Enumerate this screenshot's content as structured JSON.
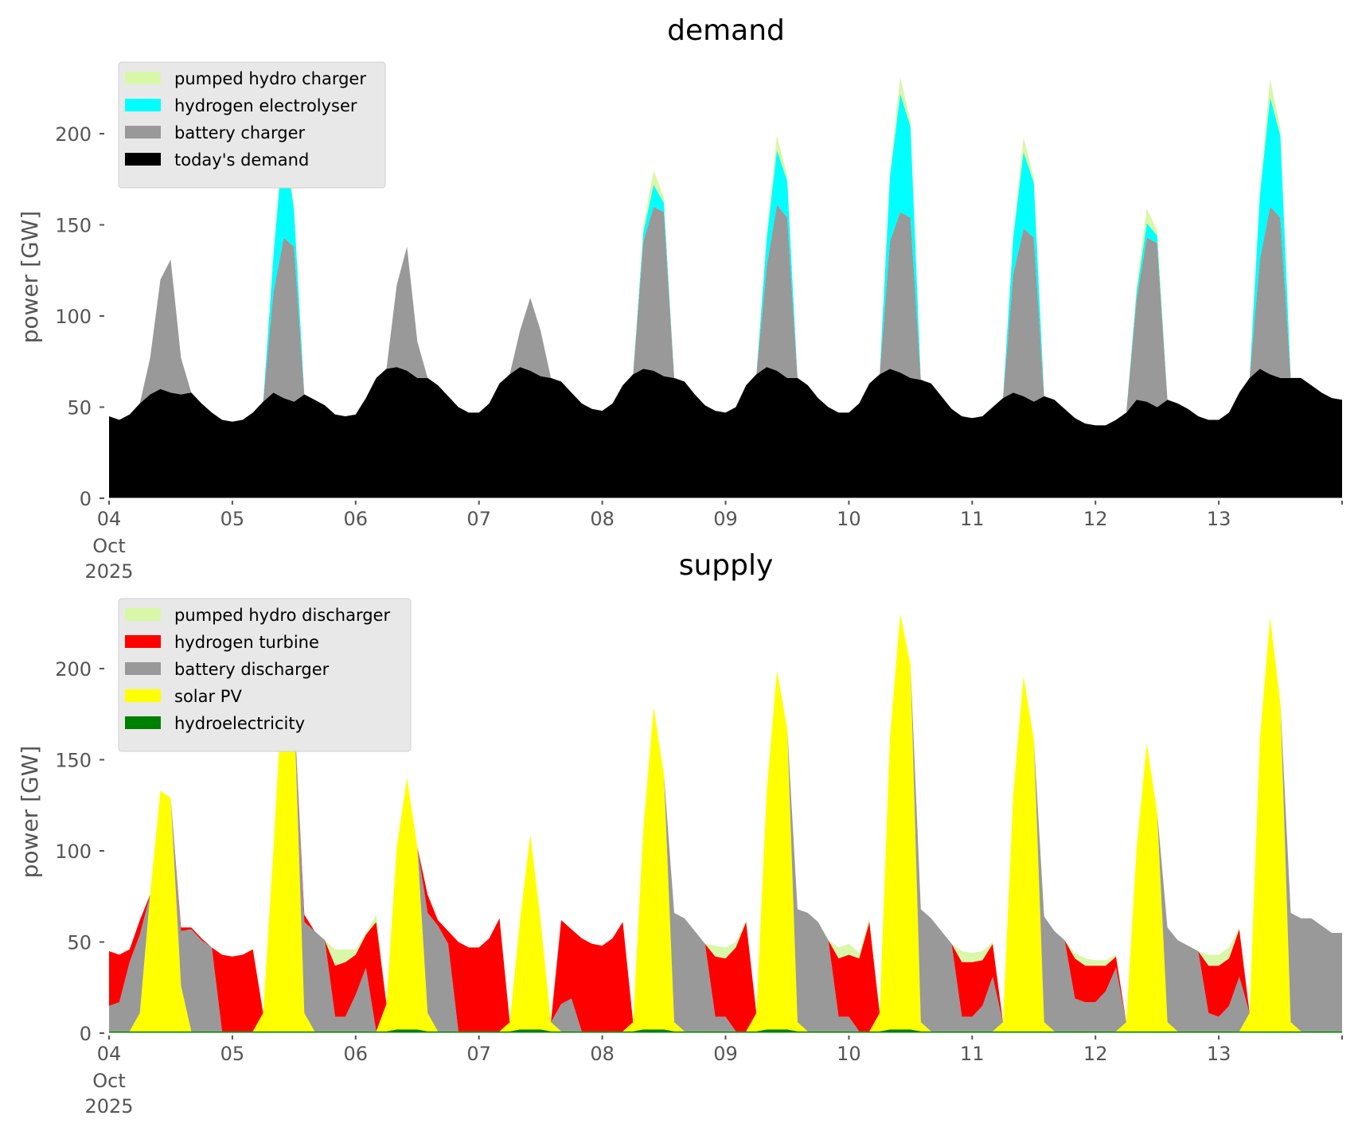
{
  "chart_data": [
    {
      "type": "area",
      "stacked": true,
      "title": "demand",
      "xlabel": "",
      "ylabel": "power [GW]",
      "ylim": [
        0,
        240
      ],
      "yticks": [
        "0",
        "50",
        "100",
        "150",
        "200"
      ],
      "ytick_values": [
        0,
        50,
        100,
        150,
        200
      ],
      "xticks": [
        "04",
        "05",
        "06",
        "07",
        "08",
        "09",
        "10",
        "11",
        "12",
        "13"
      ],
      "xtick_sublabels": [
        "Oct",
        "2025"
      ],
      "x_start": "2025-10-04 00:00",
      "x_step_hours": 2,
      "x_days": 10,
      "grid": false,
      "legend_position": "top-left",
      "series": [
        {
          "name": "today's demand",
          "color": "#000000",
          "values": [
            45,
            43,
            46,
            52,
            57,
            60,
            58,
            57,
            58,
            52,
            47,
            43,
            42,
            43,
            47,
            53,
            58,
            55,
            53,
            57,
            54,
            51,
            46,
            45,
            46,
            55,
            66,
            71,
            72,
            70,
            66,
            66,
            62,
            56,
            50,
            47,
            47,
            52,
            63,
            68,
            72,
            70,
            67,
            66,
            64,
            58,
            52,
            49,
            48,
            52,
            62,
            68,
            71,
            70,
            67,
            66,
            64,
            57,
            51,
            48,
            47,
            50,
            62,
            68,
            72,
            70,
            66,
            66,
            62,
            55,
            50,
            47,
            47,
            52,
            63,
            68,
            71,
            69,
            66,
            65,
            63,
            56,
            49,
            45,
            44,
            45,
            50,
            55,
            58,
            56,
            53,
            56,
            54,
            49,
            44,
            41,
            40,
            40,
            43,
            47,
            54,
            53,
            50,
            54,
            52,
            49,
            45,
            43,
            43,
            47,
            58,
            66,
            71,
            68,
            66,
            66,
            66,
            62,
            58,
            55,
            54
          ]
        },
        {
          "name": "battery charger",
          "color": "#999999",
          "values": [
            0,
            0,
            0,
            0,
            20,
            60,
            73,
            20,
            0,
            0,
            0,
            0,
            0,
            0,
            0,
            0,
            55,
            88,
            85,
            0,
            0,
            0,
            0,
            0,
            0,
            0,
            0,
            0,
            45,
            68,
            20,
            0,
            0,
            0,
            0,
            0,
            0,
            0,
            0,
            0,
            20,
            40,
            25,
            0,
            0,
            0,
            0,
            0,
            0,
            0,
            0,
            0,
            70,
            90,
            90,
            0,
            0,
            0,
            0,
            0,
            0,
            0,
            0,
            0,
            55,
            91,
            88,
            0,
            0,
            0,
            0,
            0,
            0,
            0,
            0,
            0,
            70,
            88,
            88,
            0,
            0,
            0,
            0,
            0,
            0,
            0,
            0,
            0,
            65,
            92,
            90,
            0,
            0,
            0,
            0,
            0,
            0,
            0,
            0,
            0,
            55,
            90,
            90,
            0,
            0,
            0,
            0,
            0,
            0,
            0,
            0,
            0,
            60,
            92,
            88,
            0,
            0,
            0,
            0,
            0,
            0
          ]
        },
        {
          "name": "hydrogen electrolyser",
          "color": "#00ffff",
          "values": [
            0,
            0,
            0,
            0,
            0,
            0,
            0,
            0,
            0,
            0,
            0,
            0,
            0,
            0,
            0,
            0,
            20,
            55,
            20,
            0,
            0,
            0,
            0,
            0,
            0,
            0,
            0,
            0,
            0,
            0,
            0,
            0,
            0,
            0,
            0,
            0,
            0,
            0,
            0,
            0,
            0,
            0,
            0,
            0,
            0,
            0,
            0,
            0,
            0,
            0,
            0,
            0,
            5,
            12,
            5,
            0,
            0,
            0,
            0,
            0,
            0,
            0,
            0,
            0,
            15,
            30,
            20,
            0,
            0,
            0,
            0,
            0,
            0,
            0,
            0,
            0,
            35,
            65,
            50,
            0,
            0,
            0,
            0,
            0,
            0,
            0,
            0,
            0,
            20,
            42,
            30,
            0,
            0,
            0,
            0,
            0,
            0,
            0,
            0,
            0,
            4,
            8,
            4,
            0,
            0,
            0,
            0,
            0,
            0,
            0,
            0,
            0,
            35,
            60,
            45,
            0,
            0,
            0,
            0,
            0,
            0
          ]
        },
        {
          "name": "pumped hydro charger",
          "color": "#d9f7a8",
          "values": [
            0,
            0,
            0,
            0,
            0,
            0,
            0,
            0,
            0,
            0,
            0,
            0,
            0,
            0,
            0,
            0,
            2,
            5,
            2,
            0,
            0,
            0,
            0,
            0,
            0,
            0,
            0,
            0,
            0,
            0,
            0,
            0,
            0,
            0,
            0,
            0,
            0,
            0,
            0,
            0,
            0,
            0,
            0,
            0,
            0,
            0,
            0,
            0,
            0,
            0,
            0,
            0,
            3,
            8,
            3,
            0,
            0,
            0,
            0,
            0,
            0,
            0,
            0,
            0,
            3,
            8,
            3,
            0,
            0,
            0,
            0,
            0,
            0,
            0,
            0,
            0,
            3,
            9,
            3,
            0,
            0,
            0,
            0,
            0,
            0,
            0,
            0,
            0,
            3,
            8,
            3,
            0,
            0,
            0,
            0,
            0,
            0,
            0,
            0,
            0,
            3,
            8,
            3,
            0,
            0,
            0,
            0,
            0,
            0,
            0,
            0,
            0,
            3,
            10,
            4,
            0,
            0,
            0,
            0,
            0,
            0
          ]
        }
      ]
    },
    {
      "type": "area",
      "stacked": true,
      "title": "supply",
      "xlabel": "",
      "ylabel": "power [GW]",
      "ylim": [
        0,
        240
      ],
      "yticks": [
        "0",
        "50",
        "100",
        "150",
        "200"
      ],
      "ytick_values": [
        0,
        50,
        100,
        150,
        200
      ],
      "xticks": [
        "04",
        "05",
        "06",
        "07",
        "08",
        "09",
        "10",
        "11",
        "12",
        "13"
      ],
      "xtick_sublabels": [
        "Oct",
        "2025"
      ],
      "x_start": "2025-10-04 00:00",
      "x_step_hours": 2,
      "x_days": 10,
      "grid": false,
      "legend_position": "top-left",
      "series": [
        {
          "name": "hydroelectricity",
          "color": "#008000",
          "values": [
            1,
            1,
            1,
            1,
            1,
            1,
            1,
            1,
            1,
            1,
            1,
            1,
            1,
            1,
            1,
            1,
            1,
            1,
            1,
            1,
            1,
            1,
            1,
            1,
            1,
            1,
            1,
            1,
            2,
            2,
            2,
            1,
            1,
            1,
            1,
            1,
            1,
            1,
            1,
            1,
            2,
            2,
            2,
            1,
            1,
            1,
            1,
            1,
            1,
            1,
            1,
            1,
            2,
            2,
            2,
            1,
            1,
            1,
            1,
            1,
            1,
            1,
            1,
            1,
            2,
            2,
            2,
            1,
            1,
            1,
            1,
            1,
            1,
            1,
            1,
            1,
            2,
            2,
            2,
            1,
            1,
            1,
            1,
            1,
            1,
            1,
            1,
            1,
            1,
            1,
            1,
            1,
            1,
            1,
            1,
            1,
            1,
            1,
            1,
            1,
            1,
            1,
            1,
            1,
            1,
            1,
            1,
            1,
            1,
            1,
            1,
            1,
            1,
            1,
            1,
            1,
            1,
            1,
            1,
            1,
            1
          ]
        },
        {
          "name": "solar PV",
          "color": "#ffff00",
          "values": [
            0,
            0,
            0,
            10,
            75,
            132,
            128,
            25,
            0,
            0,
            0,
            0,
            0,
            0,
            0,
            10,
            100,
            200,
            178,
            10,
            0,
            0,
            0,
            0,
            0,
            0,
            0,
            15,
            100,
            138,
            100,
            10,
            0,
            0,
            0,
            0,
            0,
            0,
            0,
            5,
            60,
            107,
            60,
            5,
            0,
            0,
            0,
            0,
            0,
            0,
            0,
            5,
            110,
            177,
            140,
            5,
            0,
            0,
            0,
            0,
            0,
            0,
            0,
            10,
            130,
            197,
            165,
            5,
            0,
            0,
            0,
            0,
            0,
            0,
            0,
            10,
            160,
            228,
            200,
            5,
            0,
            0,
            0,
            0,
            0,
            0,
            0,
            5,
            130,
            195,
            160,
            5,
            0,
            0,
            0,
            0,
            0,
            0,
            0,
            5,
            100,
            158,
            120,
            5,
            0,
            0,
            0,
            0,
            0,
            0,
            0,
            10,
            160,
            227,
            180,
            5,
            0,
            0,
            0,
            0,
            0
          ]
        },
        {
          "name": "battery discharger",
          "color": "#999999",
          "values": [
            14,
            16,
            38,
            43,
            0,
            0,
            0,
            30,
            56,
            50,
            46,
            0,
            0,
            0,
            0,
            0,
            0,
            0,
            0,
            50,
            55,
            50,
            8,
            8,
            20,
            35,
            0,
            0,
            0,
            0,
            0,
            55,
            58,
            48,
            0,
            0,
            0,
            0,
            0,
            0,
            0,
            0,
            0,
            0,
            15,
            18,
            0,
            0,
            0,
            0,
            0,
            0,
            0,
            0,
            0,
            60,
            62,
            55,
            48,
            8,
            8,
            0,
            0,
            0,
            0,
            0,
            0,
            62,
            65,
            60,
            50,
            8,
            8,
            0,
            0,
            0,
            0,
            0,
            0,
            62,
            62,
            55,
            48,
            8,
            8,
            14,
            30,
            0,
            0,
            0,
            0,
            58,
            55,
            50,
            18,
            16,
            16,
            22,
            35,
            0,
            0,
            0,
            0,
            52,
            50,
            47,
            44,
            10,
            8,
            14,
            30,
            0,
            0,
            0,
            0,
            60,
            62,
            62,
            58,
            54,
            54
          ]
        },
        {
          "name": "hydrogen turbine",
          "color": "#ff0000",
          "values": [
            30,
            26,
            7,
            8,
            0,
            0,
            0,
            2,
            1,
            1,
            0,
            42,
            41,
            42,
            45,
            0,
            0,
            0,
            0,
            4,
            0,
            0,
            28,
            30,
            22,
            18,
            60,
            0,
            0,
            0,
            0,
            10,
            3,
            7,
            49,
            46,
            46,
            51,
            62,
            0,
            0,
            0,
            0,
            0,
            46,
            38,
            51,
            48,
            47,
            51,
            60,
            0,
            0,
            0,
            0,
            0,
            0,
            0,
            0,
            33,
            32,
            46,
            60,
            0,
            0,
            0,
            0,
            0,
            0,
            0,
            0,
            32,
            34,
            40,
            60,
            0,
            0,
            0,
            0,
            0,
            0,
            0,
            0,
            30,
            30,
            25,
            18,
            0,
            0,
            0,
            0,
            0,
            0,
            0,
            22,
            20,
            20,
            14,
            6,
            0,
            0,
            0,
            0,
            0,
            0,
            0,
            0,
            26,
            28,
            26,
            26,
            0,
            0,
            0,
            0,
            0,
            0,
            0,
            0,
            0,
            0
          ]
        },
        {
          "name": "pumped hydro discharger",
          "color": "#d9f7a8",
          "values": [
            0,
            0,
            0,
            0,
            0,
            0,
            0,
            0,
            0,
            0,
            0,
            0,
            0,
            0,
            1,
            0,
            0,
            0,
            0,
            0,
            0,
            0,
            9,
            7,
            3,
            1,
            4,
            0,
            0,
            0,
            0,
            0,
            0,
            0,
            0,
            0,
            0,
            0,
            0,
            0,
            0,
            0,
            0,
            0,
            0,
            0,
            0,
            0,
            0,
            0,
            0,
            0,
            0,
            0,
            0,
            0,
            0,
            0,
            0,
            6,
            6,
            3,
            1,
            0,
            0,
            0,
            0,
            0,
            0,
            0,
            0,
            6,
            6,
            3,
            2,
            0,
            0,
            0,
            0,
            0,
            0,
            0,
            0,
            6,
            5,
            5,
            1,
            0,
            0,
            0,
            0,
            0,
            0,
            0,
            3,
            4,
            3,
            3,
            1,
            0,
            0,
            0,
            0,
            0,
            0,
            0,
            0,
            6,
            6,
            6,
            1,
            0,
            0,
            0,
            0,
            0,
            0,
            0,
            0,
            0,
            0
          ]
        }
      ]
    }
  ]
}
